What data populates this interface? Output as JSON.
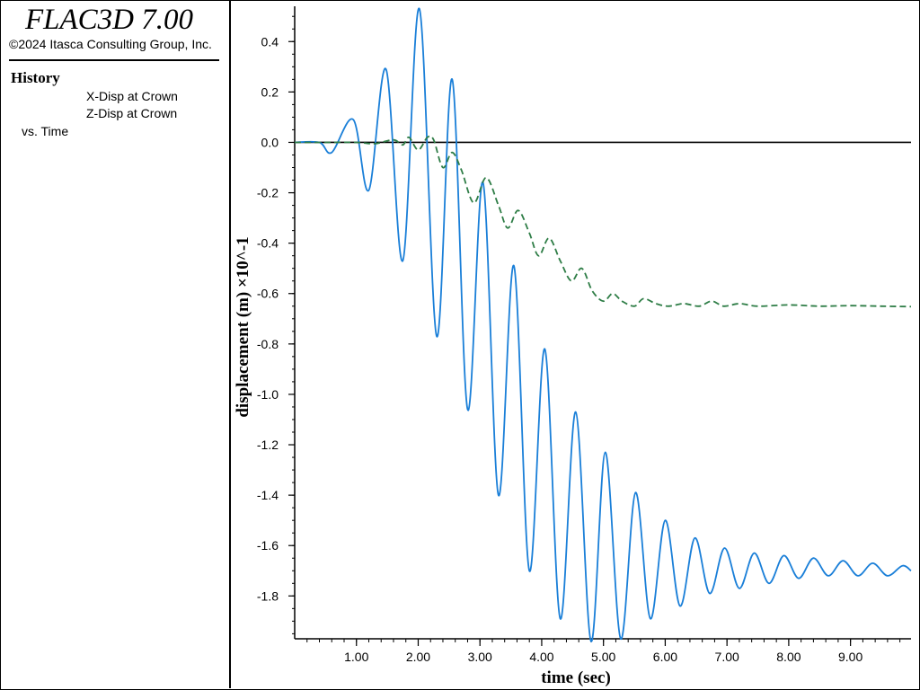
{
  "app": {
    "title": "FLAC3D 7.00",
    "copyright": "©2024 Itasca Consulting Group, Inc."
  },
  "legend": {
    "heading": "History",
    "vs_label": "vs. Time"
  },
  "colors": {
    "x_disp": "#1a7fd8",
    "z_disp": "#2e7d46",
    "zero_line": "#000000",
    "axis": "#000000"
  },
  "chart_data": {
    "type": "line",
    "xlabel": "time (sec)",
    "ylabel": "displacement (m) ×10^-1",
    "xlim": [
      0.0,
      9.98
    ],
    "ylim": [
      -1.97,
      0.54
    ],
    "x_ticks": [
      1,
      2,
      3,
      4,
      5,
      6,
      7,
      8,
      9
    ],
    "x_tick_labels": [
      "1.00",
      "2.00",
      "3.00",
      "4.00",
      "5.00",
      "6.00",
      "7.00",
      "8.00",
      "9.00"
    ],
    "y_ticks": [
      -1.8,
      -1.6,
      -1.4,
      -1.2,
      -1.0,
      -0.8,
      -0.6,
      -0.4,
      -0.2,
      0.0,
      0.2,
      0.4
    ],
    "y_tick_labels": [
      "-1.8",
      "-1.6",
      "-1.4",
      "-1.2",
      "-1.0",
      "-0.8",
      "-0.6",
      "-0.4",
      "-0.2",
      "0.0",
      "0.2",
      "0.4"
    ],
    "zero_line": true,
    "grid": false,
    "series": [
      {
        "name": "X-Disp at Crown",
        "style": "solid",
        "color": "#1a7fd8",
        "points": [
          [
            0.0,
            0.0
          ],
          [
            0.4,
            0.0
          ],
          [
            0.6,
            -0.04
          ],
          [
            0.95,
            0.09
          ],
          [
            1.2,
            -0.19
          ],
          [
            1.48,
            0.29
          ],
          [
            1.75,
            -0.47
          ],
          [
            2.02,
            0.53
          ],
          [
            2.3,
            -0.77
          ],
          [
            2.55,
            0.25
          ],
          [
            2.8,
            -1.06
          ],
          [
            3.05,
            -0.16
          ],
          [
            3.3,
            -1.4
          ],
          [
            3.55,
            -0.49
          ],
          [
            3.8,
            -1.7
          ],
          [
            4.05,
            -0.82
          ],
          [
            4.3,
            -1.89
          ],
          [
            4.55,
            -1.07
          ],
          [
            4.8,
            -1.98
          ],
          [
            5.03,
            -1.23
          ],
          [
            5.28,
            -1.97
          ],
          [
            5.52,
            -1.39
          ],
          [
            5.76,
            -1.89
          ],
          [
            6.0,
            -1.5
          ],
          [
            6.24,
            -1.84
          ],
          [
            6.48,
            -1.57
          ],
          [
            6.72,
            -1.79
          ],
          [
            6.96,
            -1.61
          ],
          [
            7.2,
            -1.77
          ],
          [
            7.44,
            -1.63
          ],
          [
            7.68,
            -1.75
          ],
          [
            7.92,
            -1.64
          ],
          [
            8.16,
            -1.73
          ],
          [
            8.4,
            -1.65
          ],
          [
            8.64,
            -1.72
          ],
          [
            8.88,
            -1.66
          ],
          [
            9.12,
            -1.72
          ],
          [
            9.36,
            -1.67
          ],
          [
            9.6,
            -1.72
          ],
          [
            9.84,
            -1.68
          ],
          [
            9.98,
            -1.7
          ]
        ]
      },
      {
        "name": "Z-Disp at Crown",
        "style": "dashed",
        "color": "#2e7d46",
        "points": [
          [
            0.0,
            0.0
          ],
          [
            0.5,
            0.0
          ],
          [
            1.0,
            0.0
          ],
          [
            1.3,
            -0.005
          ],
          [
            1.6,
            0.01
          ],
          [
            1.75,
            -0.01
          ],
          [
            1.85,
            0.02
          ],
          [
            2.0,
            -0.03
          ],
          [
            2.15,
            0.02
          ],
          [
            2.25,
            0.01
          ],
          [
            2.4,
            -0.1
          ],
          [
            2.55,
            -0.04
          ],
          [
            2.7,
            -0.11
          ],
          [
            2.9,
            -0.24
          ],
          [
            3.1,
            -0.14
          ],
          [
            3.3,
            -0.25
          ],
          [
            3.45,
            -0.34
          ],
          [
            3.62,
            -0.27
          ],
          [
            3.8,
            -0.36
          ],
          [
            3.95,
            -0.45
          ],
          [
            4.12,
            -0.38
          ],
          [
            4.3,
            -0.47
          ],
          [
            4.48,
            -0.55
          ],
          [
            4.65,
            -0.5
          ],
          [
            4.82,
            -0.59
          ],
          [
            5.0,
            -0.63
          ],
          [
            5.15,
            -0.6
          ],
          [
            5.3,
            -0.63
          ],
          [
            5.5,
            -0.65
          ],
          [
            5.65,
            -0.62
          ],
          [
            5.85,
            -0.64
          ],
          [
            6.05,
            -0.65
          ],
          [
            6.3,
            -0.64
          ],
          [
            6.55,
            -0.65
          ],
          [
            6.75,
            -0.63
          ],
          [
            6.95,
            -0.65
          ],
          [
            7.2,
            -0.64
          ],
          [
            7.5,
            -0.65
          ],
          [
            8.0,
            -0.645
          ],
          [
            8.5,
            -0.65
          ],
          [
            9.0,
            -0.648
          ],
          [
            9.5,
            -0.65
          ],
          [
            9.98,
            -0.652
          ]
        ]
      }
    ]
  }
}
